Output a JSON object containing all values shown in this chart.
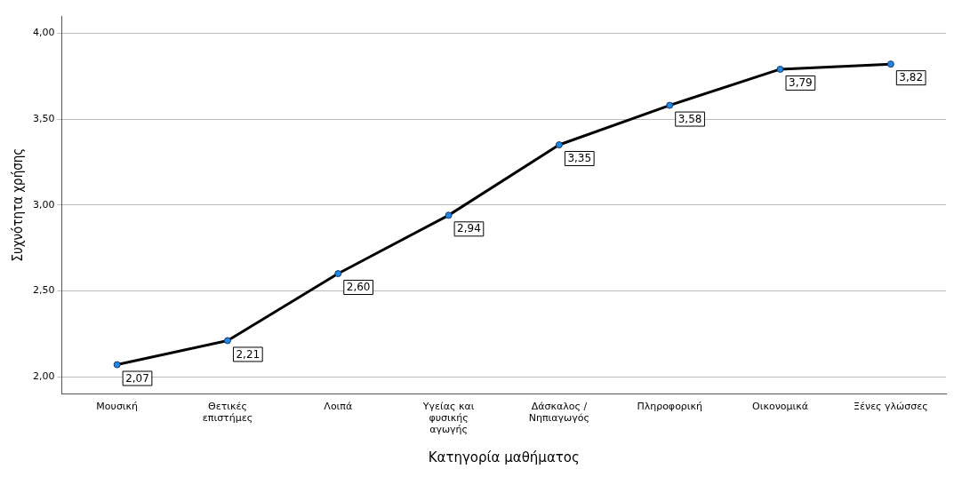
{
  "chart_data": {
    "type": "line",
    "xlabel": "Κατηγορία μαθήματος",
    "ylabel": "Συχνότητα χρήσης",
    "categories": [
      "Μουσική",
      "Θετικές επιστήμες",
      "Λοιπά",
      "Υγείας και φυσικής αγωγής",
      "Δάσκαλος / Νηπιαγωγός",
      "Πληροφορική",
      "Οικονομικά",
      "Ξένες γλώσσες"
    ],
    "series": [
      {
        "color": "#000000",
        "values": [
          2.07,
          2.21,
          2.6,
          2.94,
          3.35,
          3.58,
          3.79,
          3.82
        ],
        "value_labels": [
          "2,07",
          "2,21",
          "2,60",
          "2,94",
          "3,35",
          "3,58",
          "3,79",
          "3,82"
        ]
      }
    ],
    "ylim": [
      1.9,
      4.1
    ],
    "yticks": [
      {
        "value": 2,
        "label": "2,00"
      },
      {
        "value": 2.5,
        "label": "2,50"
      },
      {
        "value": 3,
        "label": "3,00"
      },
      {
        "value": 3.5,
        "label": "3,50"
      },
      {
        "value": 4,
        "label": "4,00"
      }
    ],
    "grid": "y",
    "marker": "circle",
    "line_style": "solid",
    "legend": false
  }
}
